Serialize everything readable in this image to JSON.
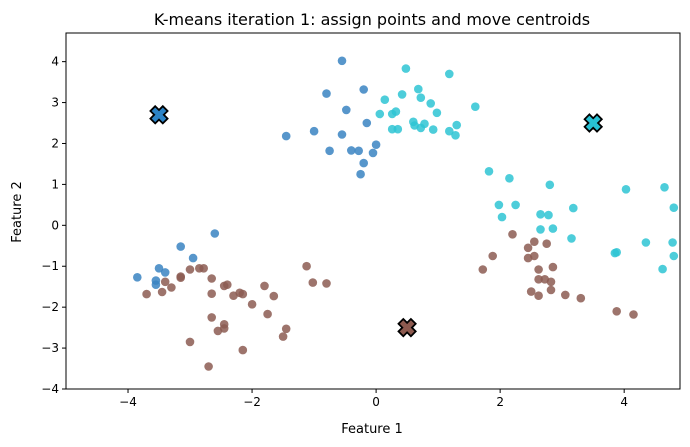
{
  "chart_data": {
    "type": "scatter",
    "title": "K-means iteration 1: assign points and move centroids",
    "xlabel": "Feature 1",
    "ylabel": "Feature 2",
    "xlim": [
      -5,
      4.9
    ],
    "ylim": [
      -4,
      4.7
    ],
    "xticks": [
      -4,
      -2,
      0,
      2,
      4
    ],
    "yticks": [
      -4,
      -3,
      -2,
      -1,
      0,
      1,
      2,
      3,
      4
    ],
    "grid": false,
    "colors": {
      "cluster_blue": "#3a84c2",
      "cluster_cyan": "#2ec4d4",
      "cluster_brown": "#8c5c52",
      "centroid_blue": "#2b83c6",
      "centroid_cyan": "#27c1d4",
      "centroid_brown": "#8d5a4f"
    },
    "series": [
      {
        "cluster": "blue",
        "points": [
          [
            -0.55,
            4.02
          ],
          [
            -0.2,
            3.32
          ],
          [
            -0.8,
            3.22
          ],
          [
            -0.48,
            2.82
          ],
          [
            -0.15,
            2.5
          ],
          [
            -1.45,
            2.18
          ],
          [
            -1.0,
            2.3
          ],
          [
            -0.55,
            2.22
          ],
          [
            -0.75,
            1.82
          ],
          [
            -0.4,
            1.83
          ],
          [
            -0.28,
            1.82
          ],
          [
            -0.2,
            1.52
          ],
          [
            -0.25,
            1.25
          ],
          [
            0.0,
            1.97
          ],
          [
            -0.05,
            1.77
          ],
          [
            -2.6,
            -0.2
          ],
          [
            -3.15,
            -0.52
          ],
          [
            -2.95,
            -0.8
          ],
          [
            -3.5,
            -1.05
          ],
          [
            -3.4,
            -1.15
          ],
          [
            -3.85,
            -1.27
          ],
          [
            -3.55,
            -1.35
          ],
          [
            -3.55,
            -1.45
          ]
        ]
      },
      {
        "cluster": "cyan",
        "points": [
          [
            0.48,
            3.83
          ],
          [
            1.18,
            3.7
          ],
          [
            0.68,
            3.33
          ],
          [
            0.42,
            3.2
          ],
          [
            0.72,
            3.12
          ],
          [
            0.14,
            3.07
          ],
          [
            0.88,
            2.98
          ],
          [
            0.98,
            2.75
          ],
          [
            0.32,
            2.78
          ],
          [
            0.26,
            2.72
          ],
          [
            0.06,
            2.72
          ],
          [
            1.6,
            2.9
          ],
          [
            0.6,
            2.53
          ],
          [
            0.62,
            2.44
          ],
          [
            0.78,
            2.48
          ],
          [
            1.3,
            2.45
          ],
          [
            0.72,
            2.38
          ],
          [
            0.35,
            2.35
          ],
          [
            0.92,
            2.34
          ],
          [
            1.18,
            2.3
          ],
          [
            1.28,
            2.2
          ],
          [
            0.26,
            2.35
          ],
          [
            1.82,
            1.32
          ],
          [
            2.15,
            1.15
          ],
          [
            2.8,
            0.99
          ],
          [
            4.03,
            0.88
          ],
          [
            4.65,
            0.93
          ],
          [
            1.98,
            0.5
          ],
          [
            2.25,
            0.5
          ],
          [
            3.18,
            0.42
          ],
          [
            4.8,
            0.43
          ],
          [
            2.03,
            0.2
          ],
          [
            2.65,
            0.27
          ],
          [
            2.78,
            0.25
          ],
          [
            2.65,
            -0.1
          ],
          [
            2.85,
            -0.08
          ],
          [
            3.15,
            -0.32
          ],
          [
            4.35,
            -0.42
          ],
          [
            4.78,
            -0.42
          ],
          [
            3.85,
            -0.68
          ],
          [
            3.88,
            -0.66
          ],
          [
            4.62,
            -1.07
          ],
          [
            4.8,
            -0.75
          ]
        ]
      },
      {
        "cluster": "brown",
        "points": [
          [
            -3.0,
            -1.08
          ],
          [
            -2.85,
            -1.05
          ],
          [
            -2.78,
            -1.05
          ],
          [
            -3.15,
            -1.25
          ],
          [
            -3.15,
            -1.28
          ],
          [
            -3.4,
            -1.38
          ],
          [
            -3.3,
            -1.52
          ],
          [
            -3.45,
            -1.63
          ],
          [
            -3.7,
            -1.68
          ],
          [
            -2.65,
            -1.3
          ],
          [
            -2.4,
            -1.45
          ],
          [
            -2.45,
            -1.48
          ],
          [
            -2.3,
            -1.72
          ],
          [
            -2.2,
            -1.65
          ],
          [
            -2.15,
            -1.68
          ],
          [
            -1.8,
            -1.48
          ],
          [
            -1.65,
            -1.73
          ],
          [
            -2.65,
            -1.67
          ],
          [
            -2.0,
            -1.93
          ],
          [
            -1.75,
            -2.17
          ],
          [
            -2.65,
            -2.25
          ],
          [
            -2.45,
            -2.42
          ],
          [
            -2.45,
            -2.52
          ],
          [
            -2.55,
            -2.58
          ],
          [
            -1.45,
            -2.53
          ],
          [
            -1.5,
            -2.72
          ],
          [
            -3.0,
            -2.85
          ],
          [
            -2.15,
            -3.05
          ],
          [
            -2.7,
            -3.45
          ],
          [
            -1.12,
            -1.0
          ],
          [
            -1.02,
            -1.4
          ],
          [
            -0.8,
            -1.42
          ],
          [
            2.2,
            -0.22
          ],
          [
            2.45,
            -0.55
          ],
          [
            2.55,
            -0.4
          ],
          [
            2.75,
            -0.45
          ],
          [
            2.55,
            -0.75
          ],
          [
            2.45,
            -0.8
          ],
          [
            1.88,
            -0.75
          ],
          [
            1.72,
            -1.08
          ],
          [
            2.62,
            -1.08
          ],
          [
            2.85,
            -1.02
          ],
          [
            2.62,
            -1.32
          ],
          [
            2.72,
            -1.32
          ],
          [
            2.82,
            -1.38
          ],
          [
            2.82,
            -1.58
          ],
          [
            2.5,
            -1.62
          ],
          [
            3.05,
            -1.7
          ],
          [
            2.62,
            -1.72
          ],
          [
            3.3,
            -1.78
          ],
          [
            3.88,
            -2.1
          ],
          [
            4.15,
            -2.18
          ]
        ]
      }
    ],
    "centroids": [
      {
        "cluster": "blue",
        "x": -3.5,
        "y": 2.7
      },
      {
        "cluster": "cyan",
        "x": 3.5,
        "y": 2.5
      },
      {
        "cluster": "brown",
        "x": 0.5,
        "y": -2.5
      }
    ]
  }
}
